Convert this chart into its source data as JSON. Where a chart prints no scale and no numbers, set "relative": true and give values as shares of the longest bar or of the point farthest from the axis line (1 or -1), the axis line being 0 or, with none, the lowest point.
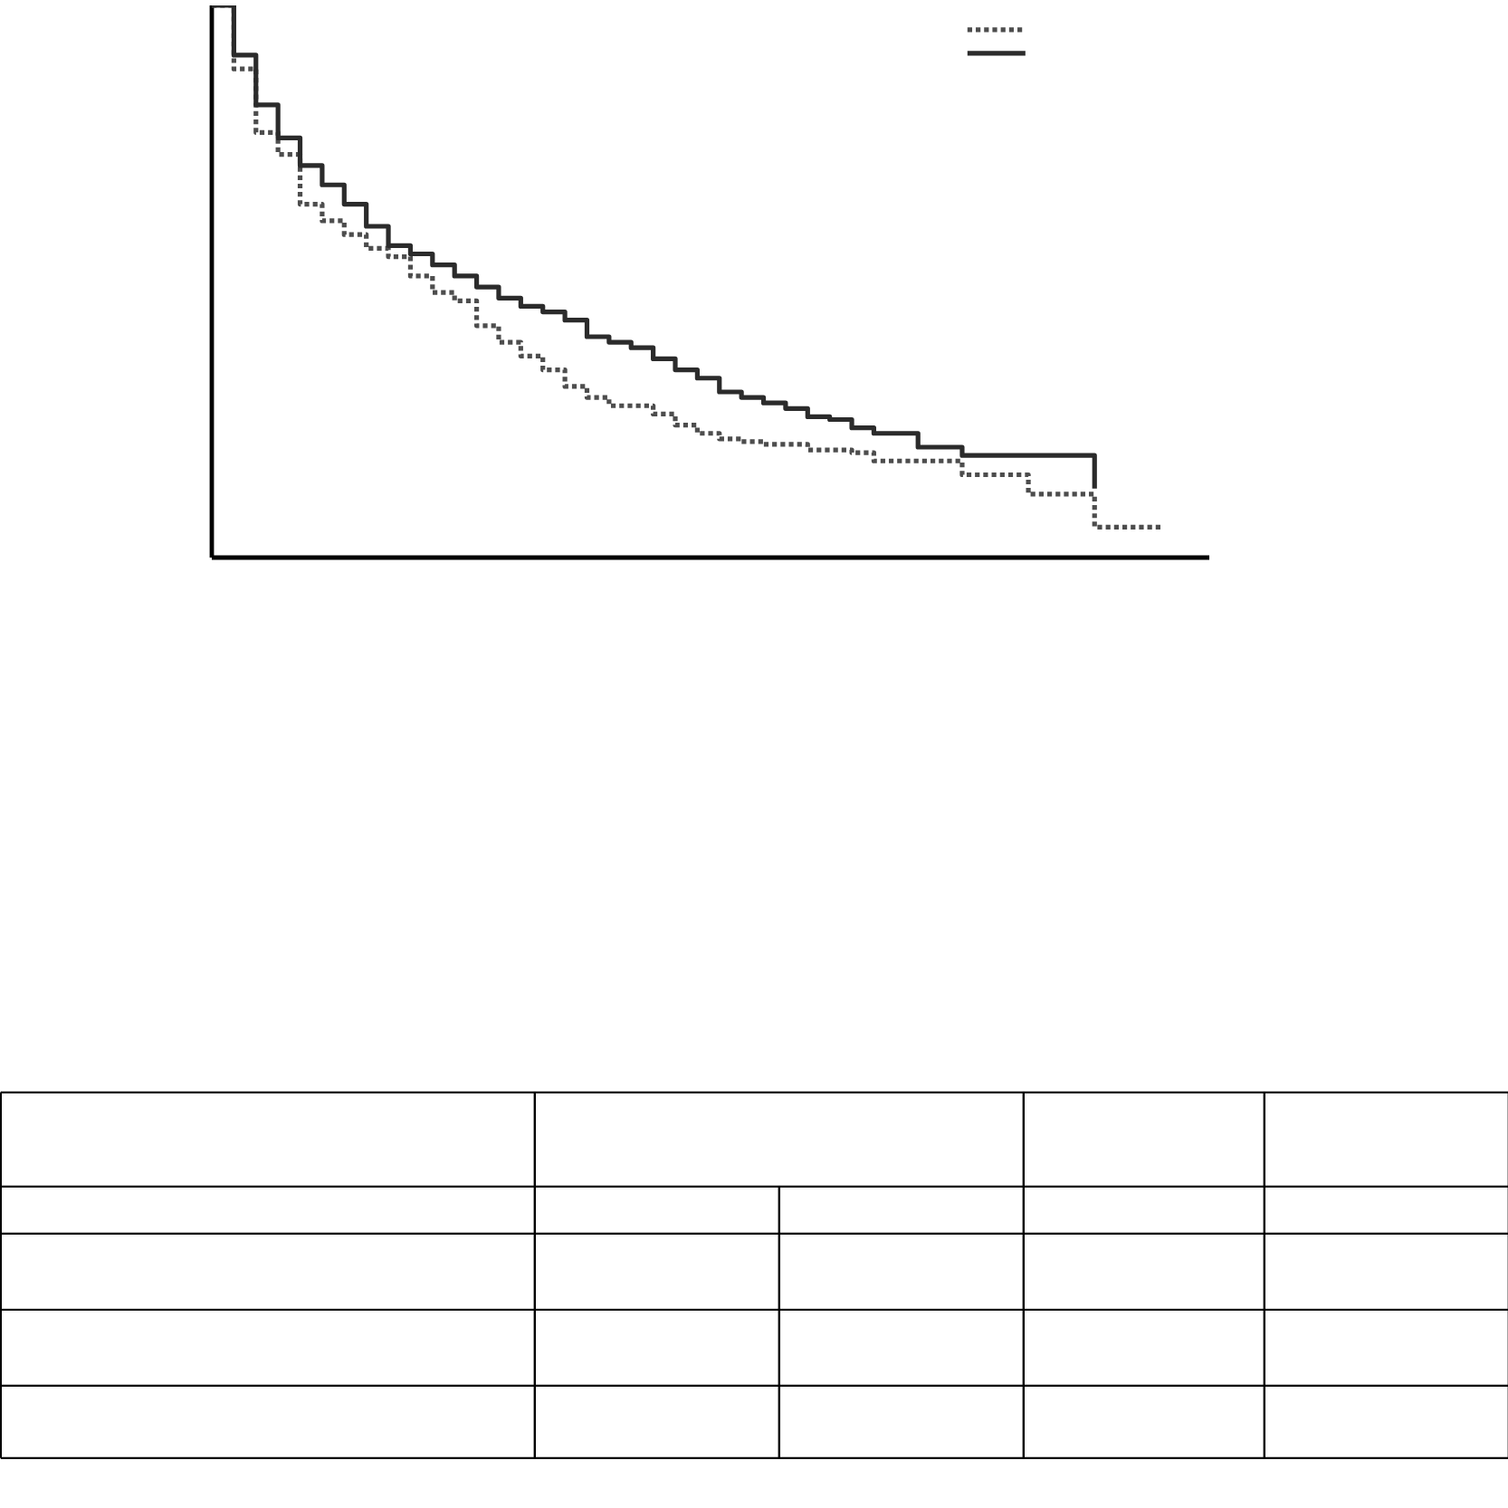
{
  "chart_data": {
    "type": "step",
    "relative": true,
    "categories": [
      null,
      null,
      null,
      null,
      null,
      null,
      null,
      null,
      null,
      null,
      null,
      null,
      null,
      null,
      null,
      null,
      null,
      null,
      null,
      null,
      null,
      null,
      null,
      null,
      null,
      null,
      null,
      null,
      null,
      null,
      null,
      null,
      null,
      null,
      null,
      null,
      null,
      null,
      null,
      null,
      null,
      null,
      null,
      null
    ],
    "series": [
      {
        "color": "#4d4d4d",
        "line_style": "dotted",
        "values": [
          1.0,
          0.885,
          0.77,
          0.73,
          0.64,
          0.61,
          0.585,
          0.56,
          0.545,
          0.51,
          0.48,
          0.465,
          0.42,
          0.39,
          0.365,
          0.34,
          0.31,
          0.29,
          0.275,
          0.275,
          0.26,
          0.24,
          0.225,
          0.215,
          0.21,
          0.205,
          0.205,
          0.195,
          0.195,
          0.19,
          0.175,
          0.175,
          0.175,
          0.175,
          0.15,
          0.15,
          0.15,
          0.115,
          0.115,
          0.115,
          0.055,
          0.055,
          0.055,
          0.055
        ]
      },
      {
        "color": "#2b2b2b",
        "line_style": "solid",
        "values": [
          1.0,
          0.91,
          0.82,
          0.76,
          0.71,
          0.675,
          0.64,
          0.6,
          0.565,
          0.55,
          0.53,
          0.51,
          0.49,
          0.47,
          0.455,
          0.445,
          0.43,
          0.4,
          0.39,
          0.38,
          0.36,
          0.34,
          0.325,
          0.3,
          0.29,
          0.28,
          0.27,
          0.255,
          0.25,
          0.235,
          0.225,
          0.225,
          0.2,
          0.2,
          0.185,
          0.185,
          0.185,
          0.185,
          0.185,
          0.185,
          0.125,
          null,
          null,
          null
        ]
      }
    ]
  }
}
